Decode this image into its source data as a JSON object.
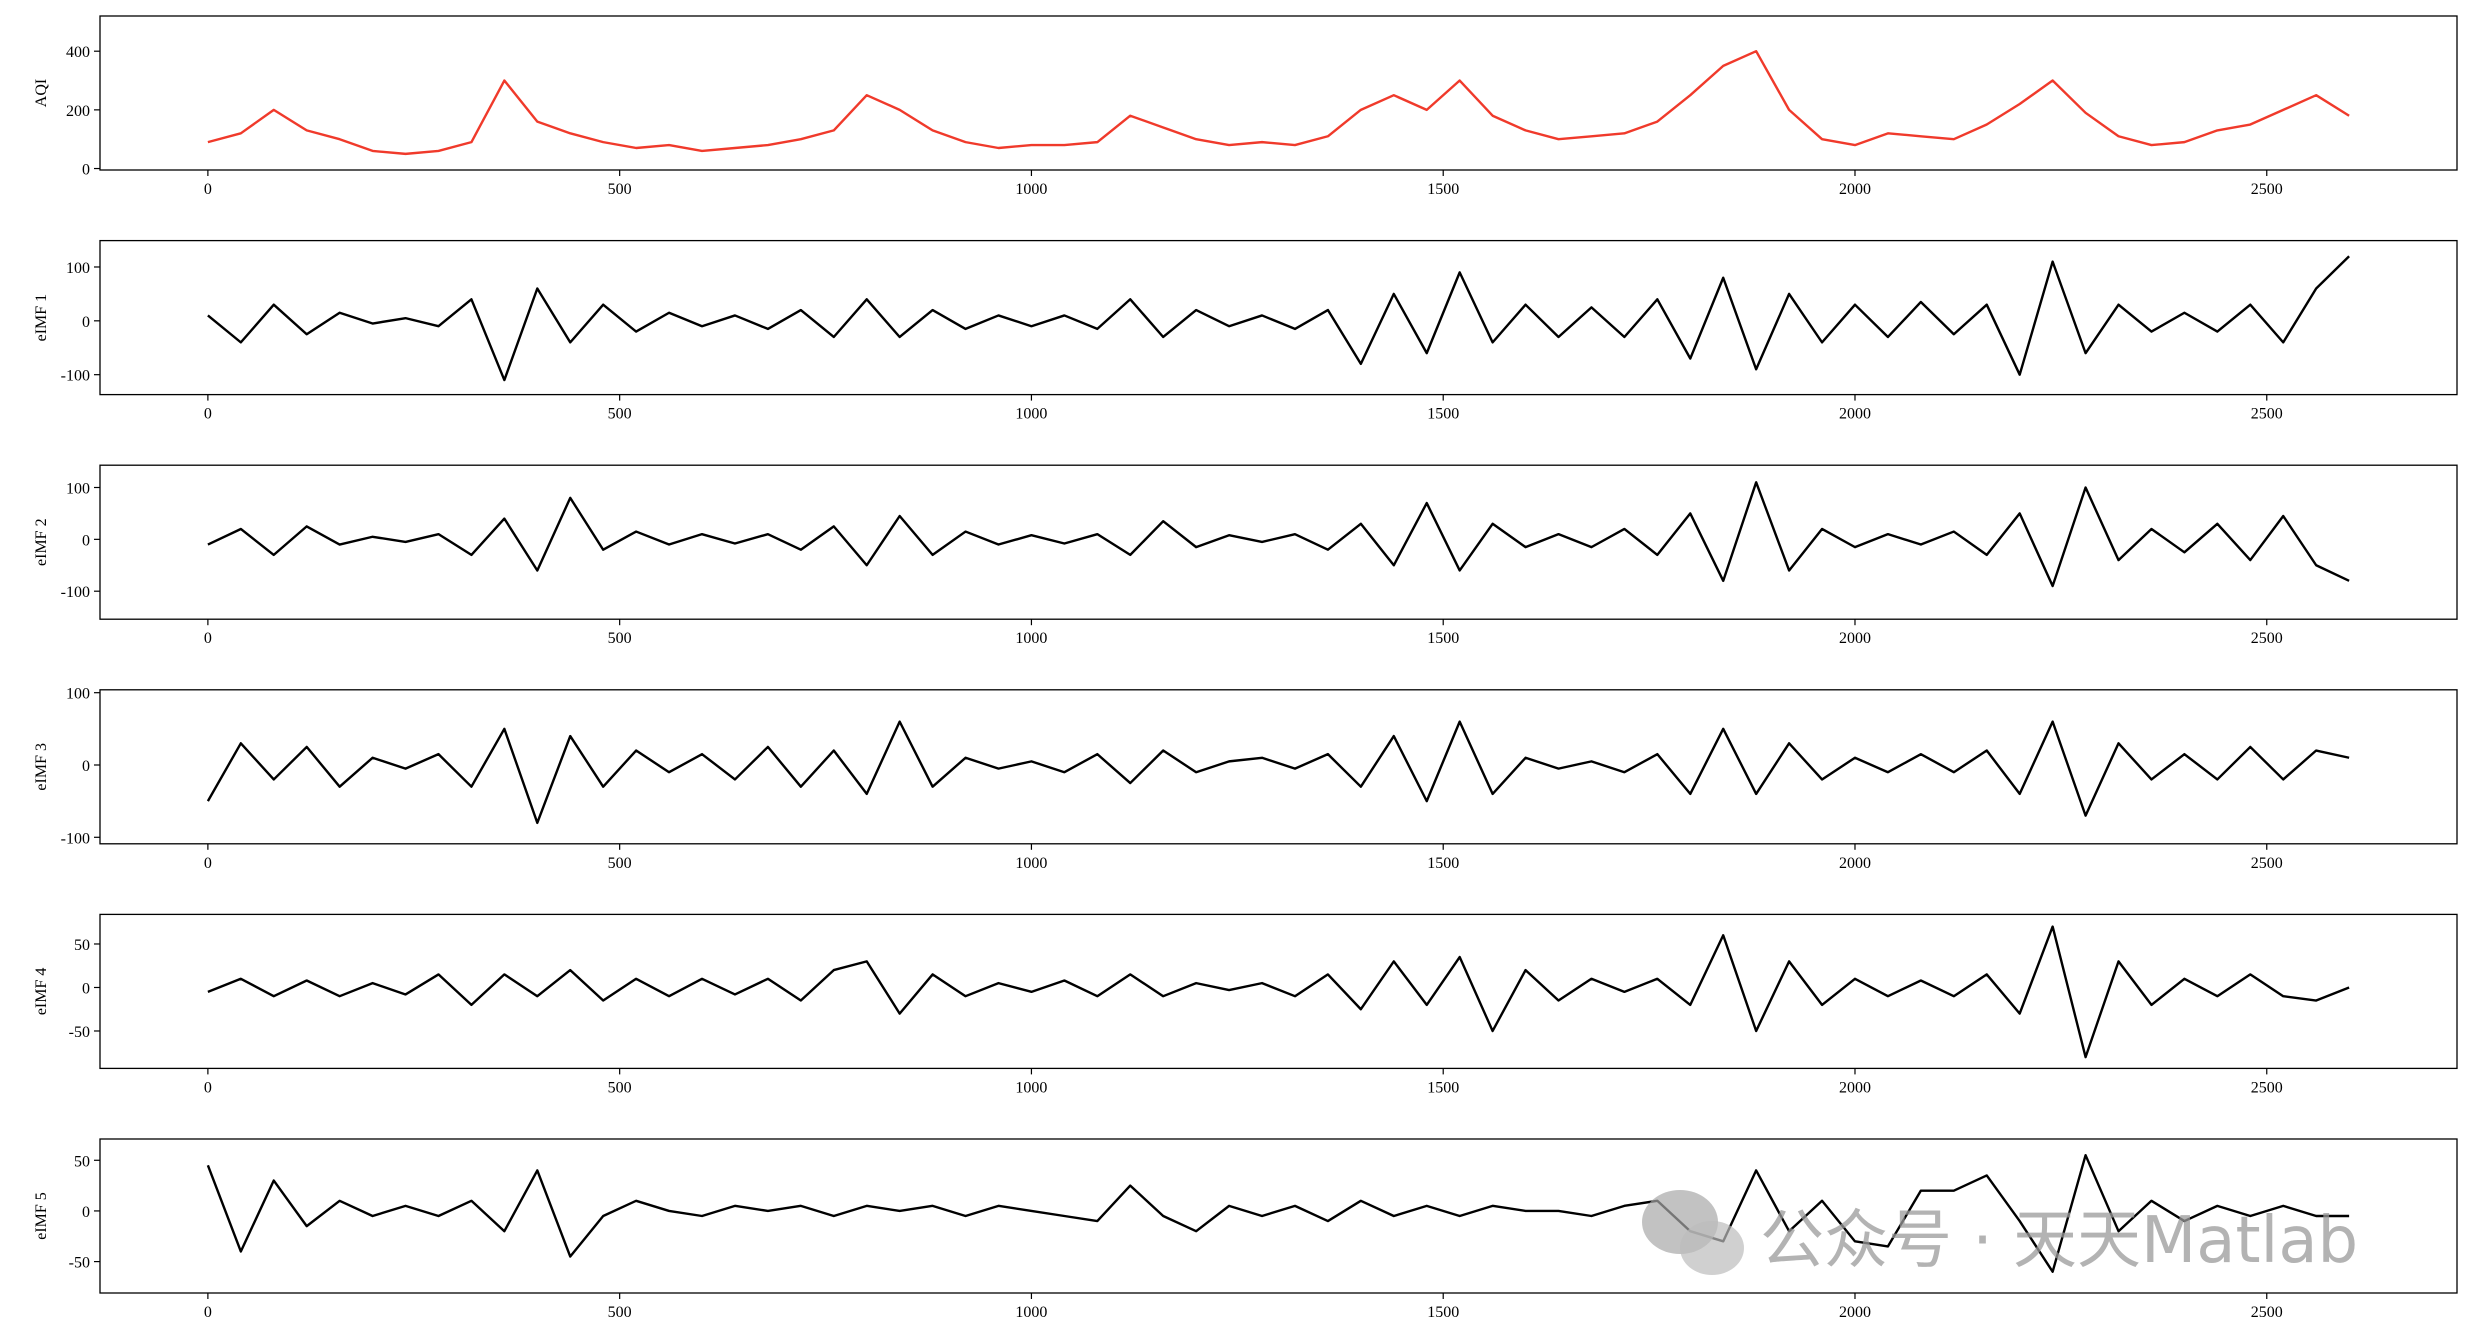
{
  "chart_data": [
    {
      "type": "line",
      "ylabel": "AQI",
      "color": "#f03a2b",
      "x": [
        0,
        40,
        80,
        120,
        160,
        200,
        240,
        280,
        320,
        360,
        400,
        440,
        480,
        520,
        560,
        600,
        640,
        680,
        720,
        760,
        800,
        840,
        880,
        920,
        960,
        1000,
        1040,
        1080,
        1120,
        1160,
        1200,
        1240,
        1280,
        1320,
        1360,
        1400,
        1440,
        1480,
        1520,
        1560,
        1600,
        1640,
        1680,
        1720,
        1760,
        1800,
        1840,
        1880,
        1920,
        1960,
        2000,
        2040,
        2080,
        2120,
        2160,
        2200,
        2240,
        2280,
        2320,
        2360,
        2400,
        2440,
        2480,
        2520,
        2560,
        2600
      ],
      "values": [
        90,
        120,
        200,
        130,
        100,
        60,
        50,
        60,
        90,
        300,
        160,
        120,
        90,
        70,
        80,
        60,
        70,
        80,
        100,
        130,
        250,
        200,
        130,
        90,
        70,
        80,
        80,
        90,
        180,
        140,
        100,
        80,
        90,
        80,
        110,
        200,
        250,
        200,
        300,
        180,
        130,
        100,
        110,
        120,
        160,
        250,
        350,
        400,
        200,
        100,
        80,
        120,
        110,
        100,
        150,
        220,
        300,
        190,
        110,
        80,
        90,
        130,
        150,
        200,
        250,
        180
      ],
      "xlim": [
        -131,
        2731
      ],
      "xticks": [
        0,
        500,
        1000,
        1500,
        2000,
        2500
      ],
      "ylim": [
        -5,
        520
      ],
      "yticks": [
        0,
        200,
        400
      ]
    },
    {
      "type": "line",
      "ylabel": "eIMF 1",
      "color": "#000000",
      "x": [
        0,
        40,
        80,
        120,
        160,
        200,
        240,
        280,
        320,
        360,
        400,
        440,
        480,
        520,
        560,
        600,
        640,
        680,
        720,
        760,
        800,
        840,
        880,
        920,
        960,
        1000,
        1040,
        1080,
        1120,
        1160,
        1200,
        1240,
        1280,
        1320,
        1360,
        1400,
        1440,
        1480,
        1520,
        1560,
        1600,
        1640,
        1680,
        1720,
        1760,
        1800,
        1840,
        1880,
        1920,
        1960,
        2000,
        2040,
        2080,
        2120,
        2160,
        2200,
        2240,
        2280,
        2320,
        2360,
        2400,
        2440,
        2480,
        2520,
        2560,
        2600
      ],
      "values": [
        10,
        -40,
        30,
        -25,
        15,
        -5,
        5,
        -10,
        40,
        -110,
        60,
        -40,
        30,
        -20,
        15,
        -10,
        10,
        -15,
        20,
        -30,
        40,
        -30,
        20,
        -15,
        10,
        -10,
        10,
        -15,
        40,
        -30,
        20,
        -10,
        10,
        -15,
        20,
        -80,
        50,
        -60,
        90,
        -40,
        30,
        -30,
        25,
        -30,
        40,
        -70,
        80,
        -90,
        50,
        -40,
        30,
        -30,
        35,
        -25,
        30,
        -100,
        110,
        -60,
        30,
        -20,
        15,
        -20,
        30,
        -40,
        60,
        120
      ],
      "xlim": [
        -131,
        2731
      ],
      "xticks": [
        0,
        500,
        1000,
        1500,
        2000,
        2500
      ],
      "ylim": [
        -137,
        149
      ],
      "yticks": [
        -100,
        0,
        100
      ]
    },
    {
      "type": "line",
      "ylabel": "eIMF 2",
      "color": "#000000",
      "x": [
        0,
        40,
        80,
        120,
        160,
        200,
        240,
        280,
        320,
        360,
        400,
        440,
        480,
        520,
        560,
        600,
        640,
        680,
        720,
        760,
        800,
        840,
        880,
        920,
        960,
        1000,
        1040,
        1080,
        1120,
        1160,
        1200,
        1240,
        1280,
        1320,
        1360,
        1400,
        1440,
        1480,
        1520,
        1560,
        1600,
        1640,
        1680,
        1720,
        1760,
        1800,
        1840,
        1880,
        1920,
        1960,
        2000,
        2040,
        2080,
        2120,
        2160,
        2200,
        2240,
        2280,
        2320,
        2360,
        2400,
        2440,
        2480,
        2520,
        2560,
        2600
      ],
      "values": [
        -10,
        20,
        -30,
        25,
        -10,
        5,
        -5,
        10,
        -30,
        40,
        -60,
        80,
        -20,
        15,
        -10,
        10,
        -8,
        10,
        -20,
        25,
        -50,
        45,
        -30,
        15,
        -10,
        8,
        -8,
        10,
        -30,
        35,
        -15,
        8,
        -5,
        10,
        -20,
        30,
        -50,
        70,
        -60,
        30,
        -15,
        10,
        -15,
        20,
        -30,
        50,
        -80,
        110,
        -60,
        20,
        -15,
        10,
        -10,
        15,
        -30,
        50,
        -90,
        100,
        -40,
        20,
        -25,
        30,
        -40,
        45,
        -50,
        -80
      ],
      "xlim": [
        -131,
        2731
      ],
      "xticks": [
        0,
        500,
        1000,
        1500,
        2000,
        2500
      ],
      "ylim": [
        -154,
        143
      ],
      "yticks": [
        -100,
        0,
        100
      ]
    },
    {
      "type": "line",
      "ylabel": "eIMF 3",
      "color": "#000000",
      "x": [
        0,
        40,
        80,
        120,
        160,
        200,
        240,
        280,
        320,
        360,
        400,
        440,
        480,
        520,
        560,
        600,
        640,
        680,
        720,
        760,
        800,
        840,
        880,
        920,
        960,
        1000,
        1040,
        1080,
        1120,
        1160,
        1200,
        1240,
        1280,
        1320,
        1360,
        1400,
        1440,
        1480,
        1520,
        1560,
        1600,
        1640,
        1680,
        1720,
        1760,
        1800,
        1840,
        1880,
        1920,
        1960,
        2000,
        2040,
        2080,
        2120,
        2160,
        2200,
        2240,
        2280,
        2320,
        2360,
        2400,
        2440,
        2480,
        2520,
        2560,
        2600
      ],
      "values": [
        -50,
        30,
        -20,
        25,
        -30,
        10,
        -5,
        15,
        -30,
        50,
        -80,
        40,
        -30,
        20,
        -10,
        15,
        -20,
        25,
        -30,
        20,
        -40,
        60,
        -30,
        10,
        -5,
        5,
        -10,
        15,
        -25,
        20,
        -10,
        5,
        10,
        -5,
        15,
        -30,
        40,
        -50,
        60,
        -40,
        10,
        -5,
        5,
        -10,
        15,
        -40,
        50,
        -40,
        30,
        -20,
        10,
        -10,
        15,
        -10,
        20,
        -40,
        60,
        -70,
        30,
        -20,
        15,
        -20,
        25,
        -20,
        20,
        10
      ],
      "xlim": [
        -131,
        2731
      ],
      "xticks": [
        0,
        500,
        1000,
        1500,
        2000,
        2500
      ],
      "ylim": [
        -109,
        104
      ],
      "yticks": [
        -100,
        0,
        100
      ]
    },
    {
      "type": "line",
      "ylabel": "eIMF 4",
      "color": "#000000",
      "x": [
        0,
        40,
        80,
        120,
        160,
        200,
        240,
        280,
        320,
        360,
        400,
        440,
        480,
        520,
        560,
        600,
        640,
        680,
        720,
        760,
        800,
        840,
        880,
        920,
        960,
        1000,
        1040,
        1080,
        1120,
        1160,
        1200,
        1240,
        1280,
        1320,
        1360,
        1400,
        1440,
        1480,
        1520,
        1560,
        1600,
        1640,
        1680,
        1720,
        1760,
        1800,
        1840,
        1880,
        1920,
        1960,
        2000,
        2040,
        2080,
        2120,
        2160,
        2200,
        2240,
        2280,
        2320,
        2360,
        2400,
        2440,
        2480,
        2520,
        2560,
        2600
      ],
      "values": [
        -5,
        10,
        -10,
        8,
        -10,
        5,
        -8,
        15,
        -20,
        15,
        -10,
        20,
        -15,
        10,
        -10,
        10,
        -8,
        10,
        -15,
        20,
        30,
        -30,
        15,
        -10,
        5,
        -5,
        8,
        -10,
        15,
        -10,
        5,
        -3,
        5,
        -10,
        15,
        -25,
        30,
        -20,
        35,
        -50,
        20,
        -15,
        10,
        -5,
        10,
        -20,
        60,
        -50,
        30,
        -20,
        10,
        -10,
        8,
        -10,
        15,
        -30,
        70,
        -80,
        30,
        -20,
        10,
        -10,
        15,
        -10,
        -15,
        0
      ],
      "xlim": [
        -131,
        2731
      ],
      "xticks": [
        0,
        500,
        1000,
        1500,
        2000,
        2500
      ],
      "ylim": [
        -93,
        84
      ],
      "yticks": [
        -50,
        0,
        50
      ]
    },
    {
      "type": "line",
      "ylabel": "eIMF 5",
      "color": "#000000",
      "x": [
        0,
        40,
        80,
        120,
        160,
        200,
        240,
        280,
        320,
        360,
        400,
        440,
        480,
        520,
        560,
        600,
        640,
        680,
        720,
        760,
        800,
        840,
        880,
        920,
        960,
        1000,
        1040,
        1080,
        1120,
        1160,
        1200,
        1240,
        1280,
        1320,
        1360,
        1400,
        1440,
        1480,
        1520,
        1560,
        1600,
        1640,
        1680,
        1720,
        1760,
        1800,
        1840,
        1880,
        1920,
        1960,
        2000,
        2040,
        2080,
        2120,
        2160,
        2200,
        2240,
        2280,
        2320,
        2360,
        2400,
        2440,
        2480,
        2520,
        2560,
        2600
      ],
      "values": [
        45,
        -40,
        30,
        -15,
        10,
        -5,
        5,
        -5,
        10,
        -20,
        40,
        -45,
        -5,
        10,
        0,
        -5,
        5,
        0,
        5,
        -5,
        5,
        0,
        5,
        -5,
        5,
        0,
        -5,
        -10,
        25,
        -5,
        -20,
        5,
        -5,
        5,
        -10,
        10,
        -5,
        5,
        -5,
        5,
        0,
        0,
        -5,
        5,
        10,
        -20,
        -30,
        40,
        -20,
        10,
        -30,
        -35,
        20,
        20,
        35,
        -10,
        -60,
        55,
        -20,
        10,
        -10,
        5,
        -5,
        5,
        -5,
        -5
      ],
      "xlim": [
        -131,
        2731
      ],
      "xticks": [
        0,
        500,
        1000,
        1500,
        2000,
        2500
      ],
      "ylim": [
        -81,
        71
      ],
      "yticks": [
        -50,
        0,
        50
      ]
    }
  ],
  "watermark": "公众号 · 天天Matlab"
}
